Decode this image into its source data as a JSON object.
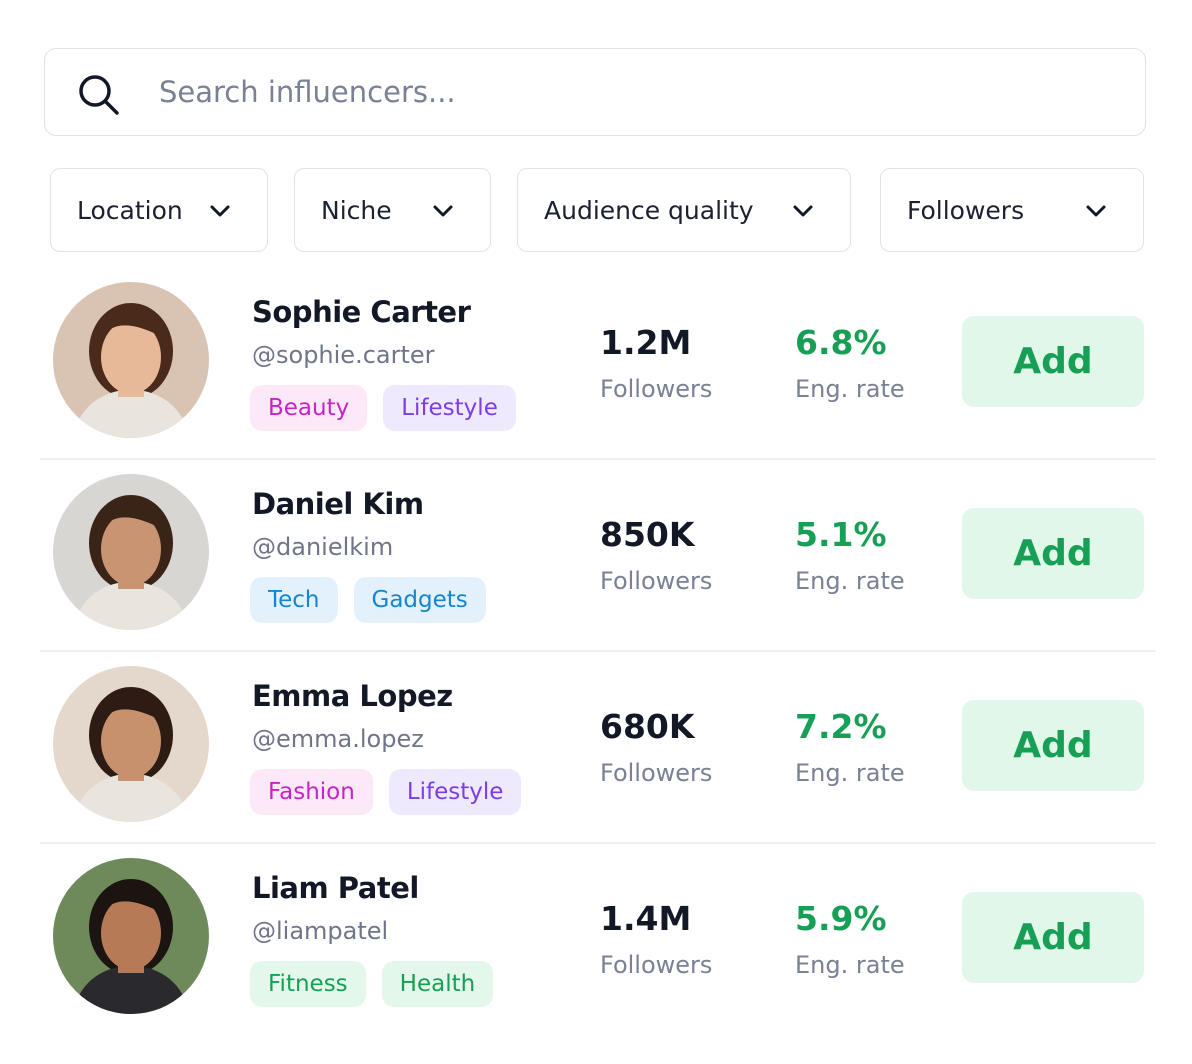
{
  "search": {
    "placeholder": "Search influencers..."
  },
  "filters": [
    "Location",
    "Niche",
    "Audience quality",
    "Followers"
  ],
  "influencers": [
    {
      "name": "Sophie Carter",
      "handle": "@sophie.carter",
      "tags": [
        {
          "text": "Beauty",
          "color": "pink"
        },
        {
          "text": "Lifestyle",
          "color": "purple"
        }
      ],
      "followers": "1.2M",
      "followers_label": "Followers",
      "engagement": "6.8%",
      "engagement_label": "Eng. rate",
      "button": "Add"
    },
    {
      "name": "Daniel Kim",
      "handle": "@danielkim",
      "tags": [
        {
          "text": "Tech",
          "color": "blue"
        },
        {
          "text": "Gadgets",
          "color": "blue"
        }
      ],
      "followers": "850K",
      "followers_label": "Followers",
      "engagement": "5.1%",
      "engagement_label": "Eng. rate",
      "button": "Add"
    },
    {
      "name": "Emma Lopez",
      "handle": "@emma.lopez",
      "tags": [
        {
          "text": "Fashion",
          "color": "pink"
        },
        {
          "text": "Lifestyle",
          "color": "purple"
        }
      ],
      "followers": "680K",
      "followers_label": "Followers",
      "engagement": "7.2%",
      "engagement_label": "Eng. rate",
      "button": "Add"
    },
    {
      "name": "Liam Patel",
      "handle": "@liampatel",
      "tags": [
        {
          "text": "Fitness",
          "color": "green"
        },
        {
          "text": "Health",
          "color": "green"
        }
      ],
      "followers": "1.4M",
      "followers_label": "Followers",
      "engagement": "5.9%",
      "engagement_label": "Eng. rate",
      "button": "Add"
    }
  ]
}
